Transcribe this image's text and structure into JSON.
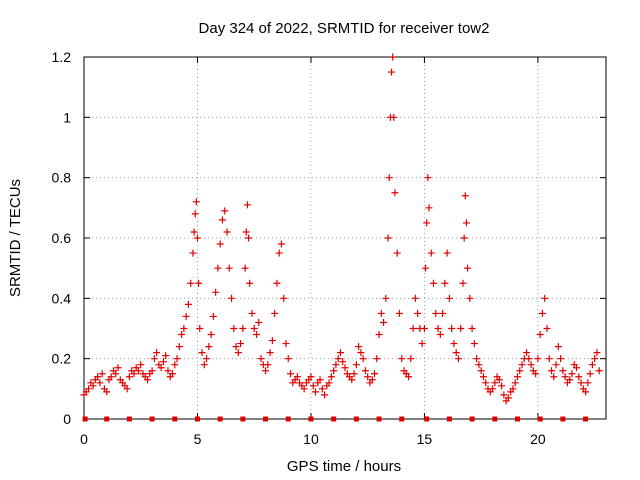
{
  "chart_data": {
    "type": "scatter",
    "title": "Day 324 of 2022, SRMTID for receiver tow2",
    "xlabel": "GPS time / hours",
    "ylabel": "SRMTID / TECUs",
    "xlim": [
      0,
      23
    ],
    "ylim": [
      0,
      1.2
    ],
    "xticks": [
      0,
      5,
      10,
      15,
      20
    ],
    "yticks": [
      0,
      0.2,
      0.4,
      0.6,
      0.8,
      1,
      1.2
    ],
    "ytick_labels": [
      "0",
      "0.2",
      "0.4",
      "0.6",
      "0.8",
      "1",
      "1.2"
    ],
    "grid": true,
    "marker": "plus",
    "color": "#e00000",
    "baseline_markers": {
      "y": 0,
      "x": [
        0.05,
        1.0,
        2.0,
        3.0,
        4.0,
        5.0,
        6.0,
        7.0,
        8.0,
        9.0,
        10.0,
        11.0,
        12.0,
        13.0,
        14.0,
        15.1,
        16.1,
        17.1,
        18.1,
        19.1,
        20.1,
        21.1,
        22.1
      ]
    },
    "series": [
      {
        "name": "SRMTID",
        "x": [
          0.0,
          0.1,
          0.2,
          0.3,
          0.4,
          0.5,
          0.6,
          0.7,
          0.8,
          0.9,
          1.0,
          1.1,
          1.2,
          1.3,
          1.4,
          1.5,
          1.6,
          1.7,
          1.8,
          1.9,
          2.0,
          2.1,
          2.2,
          2.3,
          2.4,
          2.5,
          2.6,
          2.7,
          2.8,
          2.9,
          3.0,
          3.1,
          3.2,
          3.3,
          3.4,
          3.5,
          3.6,
          3.7,
          3.8,
          3.9,
          4.0,
          4.1,
          4.2,
          4.3,
          4.4,
          4.5,
          4.6,
          4.7,
          4.8,
          4.85,
          4.9,
          4.95,
          5.0,
          5.05,
          5.1,
          5.2,
          5.3,
          5.4,
          5.5,
          5.6,
          5.7,
          5.8,
          5.9,
          6.0,
          6.1,
          6.2,
          6.3,
          6.4,
          6.5,
          6.6,
          6.7,
          6.8,
          6.9,
          7.0,
          7.1,
          7.15,
          7.2,
          7.25,
          7.3,
          7.4,
          7.5,
          7.6,
          7.7,
          7.8,
          7.9,
          8.0,
          8.1,
          8.2,
          8.3,
          8.4,
          8.5,
          8.6,
          8.7,
          8.8,
          8.9,
          9.0,
          9.1,
          9.2,
          9.3,
          9.4,
          9.5,
          9.6,
          9.7,
          9.8,
          9.9,
          10.0,
          10.1,
          10.2,
          10.3,
          10.4,
          10.5,
          10.6,
          10.7,
          10.8,
          10.9,
          11.0,
          11.1,
          11.2,
          11.3,
          11.4,
          11.5,
          11.6,
          11.7,
          11.8,
          11.9,
          12.0,
          12.1,
          12.2,
          12.3,
          12.4,
          12.5,
          12.6,
          12.7,
          12.8,
          12.9,
          13.0,
          13.1,
          13.2,
          13.3,
          13.4,
          13.45,
          13.5,
          13.55,
          13.6,
          13.65,
          13.7,
          13.8,
          13.9,
          14.0,
          14.1,
          14.2,
          14.3,
          14.4,
          14.5,
          14.6,
          14.7,
          14.8,
          14.9,
          15.0,
          15.05,
          15.1,
          15.15,
          15.2,
          15.3,
          15.4,
          15.5,
          15.6,
          15.7,
          15.8,
          15.9,
          16.0,
          16.1,
          16.2,
          16.3,
          16.4,
          16.5,
          16.6,
          16.7,
          16.75,
          16.8,
          16.85,
          16.9,
          17.0,
          17.1,
          17.2,
          17.3,
          17.4,
          17.5,
          17.6,
          17.7,
          17.8,
          17.9,
          18.0,
          18.1,
          18.2,
          18.3,
          18.4,
          18.5,
          18.6,
          18.7,
          18.8,
          18.9,
          19.0,
          19.1,
          19.2,
          19.3,
          19.4,
          19.5,
          19.6,
          19.7,
          19.8,
          19.9,
          20.0,
          20.1,
          20.2,
          20.3,
          20.4,
          20.5,
          20.6,
          20.7,
          20.8,
          20.9,
          21.0,
          21.1,
          21.2,
          21.3,
          21.4,
          21.5,
          21.6,
          21.7,
          21.8,
          21.9,
          22.0,
          22.1,
          22.2,
          22.3,
          22.4,
          22.5,
          22.6,
          22.7
        ],
        "y": [
          0.08,
          0.09,
          0.1,
          0.12,
          0.11,
          0.13,
          0.14,
          0.12,
          0.15,
          0.1,
          0.09,
          0.13,
          0.14,
          0.16,
          0.15,
          0.17,
          0.13,
          0.12,
          0.11,
          0.1,
          0.14,
          0.16,
          0.15,
          0.17,
          0.16,
          0.18,
          0.15,
          0.14,
          0.13,
          0.15,
          0.16,
          0.2,
          0.22,
          0.18,
          0.17,
          0.19,
          0.21,
          0.16,
          0.14,
          0.15,
          0.18,
          0.2,
          0.24,
          0.28,
          0.3,
          0.34,
          0.38,
          0.45,
          0.55,
          0.62,
          0.68,
          0.72,
          0.6,
          0.45,
          0.3,
          0.22,
          0.18,
          0.2,
          0.24,
          0.28,
          0.34,
          0.42,
          0.5,
          0.58,
          0.66,
          0.69,
          0.62,
          0.5,
          0.4,
          0.3,
          0.24,
          0.22,
          0.25,
          0.3,
          0.5,
          0.62,
          0.71,
          0.6,
          0.45,
          0.35,
          0.3,
          0.28,
          0.32,
          0.2,
          0.18,
          0.16,
          0.18,
          0.22,
          0.26,
          0.35,
          0.45,
          0.55,
          0.58,
          0.4,
          0.25,
          0.2,
          0.15,
          0.12,
          0.13,
          0.14,
          0.12,
          0.11,
          0.1,
          0.12,
          0.13,
          0.14,
          0.11,
          0.09,
          0.12,
          0.13,
          0.1,
          0.08,
          0.11,
          0.12,
          0.14,
          0.16,
          0.18,
          0.2,
          0.22,
          0.19,
          0.17,
          0.15,
          0.14,
          0.13,
          0.15,
          0.18,
          0.24,
          0.22,
          0.2,
          0.16,
          0.14,
          0.12,
          0.13,
          0.15,
          0.2,
          0.28,
          0.35,
          0.32,
          0.4,
          0.6,
          0.8,
          1.0,
          1.15,
          1.2,
          1.0,
          0.75,
          0.55,
          0.35,
          0.2,
          0.16,
          0.15,
          0.14,
          0.2,
          0.3,
          0.4,
          0.35,
          0.3,
          0.25,
          0.3,
          0.5,
          0.65,
          0.8,
          0.7,
          0.55,
          0.45,
          0.35,
          0.3,
          0.28,
          0.35,
          0.45,
          0.55,
          0.4,
          0.3,
          0.25,
          0.22,
          0.2,
          0.3,
          0.45,
          0.6,
          0.74,
          0.65,
          0.5,
          0.4,
          0.3,
          0.25,
          0.2,
          0.18,
          0.16,
          0.14,
          0.12,
          0.1,
          0.09,
          0.1,
          0.12,
          0.14,
          0.13,
          0.11,
          0.08,
          0.06,
          0.07,
          0.09,
          0.1,
          0.12,
          0.14,
          0.16,
          0.18,
          0.2,
          0.22,
          0.2,
          0.18,
          0.16,
          0.15,
          0.2,
          0.28,
          0.35,
          0.4,
          0.3,
          0.2,
          0.16,
          0.14,
          0.18,
          0.24,
          0.2,
          0.16,
          0.14,
          0.12,
          0.13,
          0.15,
          0.18,
          0.17,
          0.14,
          0.12,
          0.1,
          0.09,
          0.12,
          0.15,
          0.18,
          0.2,
          0.22,
          0.16
        ]
      }
    ]
  }
}
